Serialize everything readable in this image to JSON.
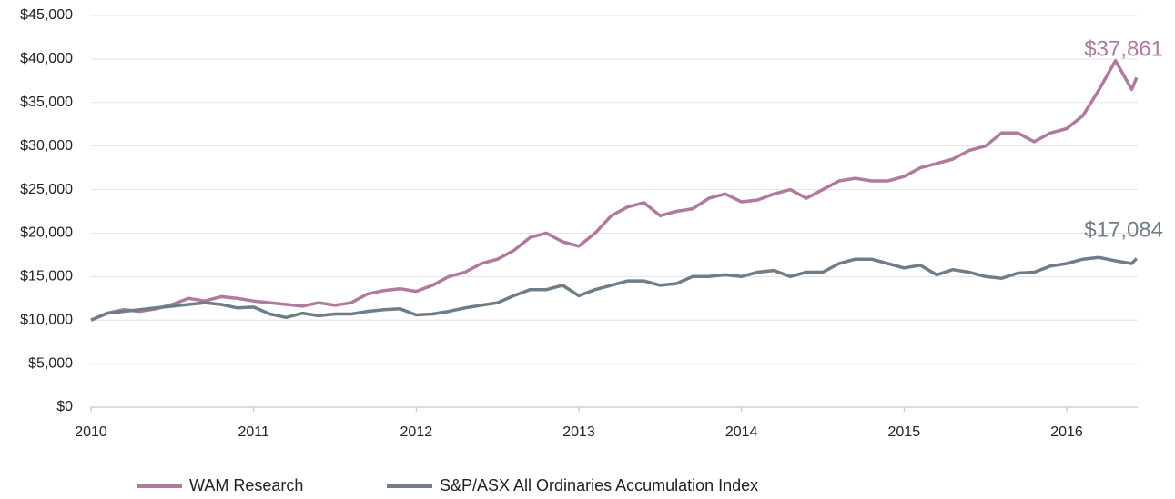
{
  "chart_data": {
    "type": "line",
    "x": [
      2010.0,
      2010.1,
      2010.2,
      2010.3,
      2010.4,
      2010.5,
      2010.6,
      2010.7,
      2010.8,
      2010.9,
      2011.0,
      2011.1,
      2011.2,
      2011.3,
      2011.4,
      2011.5,
      2011.6,
      2011.7,
      2011.8,
      2011.9,
      2012.0,
      2012.1,
      2012.2,
      2012.3,
      2012.4,
      2012.5,
      2012.6,
      2012.7,
      2012.8,
      2012.9,
      2013.0,
      2013.1,
      2013.2,
      2013.3,
      2013.4,
      2013.5,
      2013.6,
      2013.7,
      2013.8,
      2013.9,
      2014.0,
      2014.1,
      2014.2,
      2014.3,
      2014.4,
      2014.5,
      2014.6,
      2014.7,
      2014.8,
      2014.9,
      2015.0,
      2015.1,
      2015.2,
      2015.3,
      2015.4,
      2015.5,
      2015.6,
      2015.7,
      2015.8,
      2015.9,
      2016.0,
      2016.1,
      2016.2,
      2016.3,
      2016.4,
      2016.43
    ],
    "series": [
      {
        "name": "WAM Research",
        "color": "#b07a9e",
        "last_value_label": "$37,861",
        "values": [
          10000,
          10800,
          11200,
          11000,
          11300,
          11800,
          12500,
          12200,
          12700,
          12500,
          12200,
          12000,
          11800,
          11600,
          12000,
          11700,
          12000,
          13000,
          13400,
          13600,
          13300,
          14000,
          15000,
          15500,
          16500,
          17000,
          18000,
          19500,
          20000,
          19000,
          18500,
          20000,
          22000,
          23000,
          23500,
          22000,
          22500,
          22800,
          24000,
          24500,
          23600,
          23800,
          24500,
          25000,
          24000,
          25000,
          26000,
          26300,
          26000,
          26000,
          26500,
          27500,
          28000,
          28500,
          29500,
          30000,
          31500,
          31500,
          30500,
          31500,
          32000,
          33500,
          36500,
          39800,
          36500,
          37861
        ]
      },
      {
        "name": "S&P/ASX All Ordinaries Accumulation Index",
        "color": "#6f7d89",
        "last_value_label": "$17,084",
        "values": [
          10000,
          10800,
          11000,
          11200,
          11400,
          11600,
          11800,
          12000,
          11800,
          11400,
          11500,
          10700,
          10300,
          10800,
          10500,
          10700,
          10700,
          11000,
          11200,
          11300,
          10600,
          10700,
          11000,
          11400,
          11700,
          12000,
          12800,
          13500,
          13500,
          14000,
          12800,
          13500,
          14000,
          14500,
          14500,
          14000,
          14200,
          15000,
          15000,
          15200,
          15000,
          15500,
          15700,
          15000,
          15500,
          15500,
          16500,
          17000,
          17000,
          16500,
          16000,
          16300,
          15200,
          15800,
          15500,
          15000,
          14800,
          15400,
          15500,
          16200,
          16500,
          17000,
          17200,
          16800,
          16500,
          17084
        ]
      }
    ],
    "xlim": [
      2010,
      2016.6
    ],
    "xticks": [
      2010,
      2011,
      2012,
      2013,
      2014,
      2015,
      2016
    ],
    "ylim": [
      0,
      45000
    ],
    "yticks": [
      {
        "value": 0,
        "label": "$0"
      },
      {
        "value": 5000,
        "label": "$5,000"
      },
      {
        "value": 10000,
        "label": "$10,000"
      },
      {
        "value": 15000,
        "label": "$15,000"
      },
      {
        "value": 20000,
        "label": "$20,000"
      },
      {
        "value": 25000,
        "label": "$25,000"
      },
      {
        "value": 30000,
        "label": "$30,000"
      },
      {
        "value": 35000,
        "label": "$35,000"
      },
      {
        "value": 40000,
        "label": "$40,000"
      },
      {
        "value": 45000,
        "label": "$45,000"
      }
    ],
    "grid": true,
    "legend": "bottom"
  }
}
